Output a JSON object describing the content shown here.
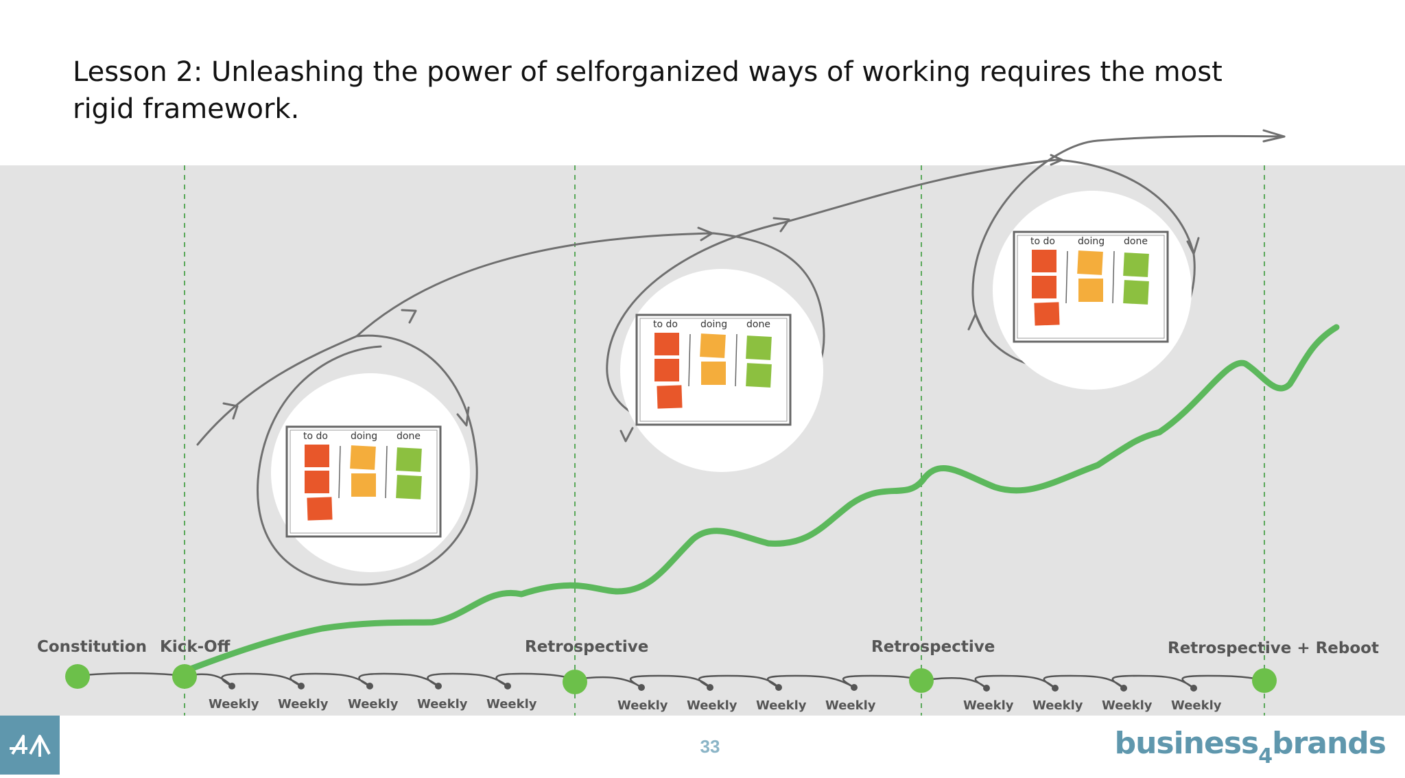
{
  "slide": {
    "title": "Lesson 2: Unleashing the power of selforganized ways of working requires the most rigid framework.",
    "page_number": "33"
  },
  "brand": {
    "name_part1": "business",
    "name_sub": "4",
    "name_part2": "brands"
  },
  "colors": {
    "background": "#e3e3e3",
    "growth_line": "#5cb85c",
    "milestone": "#6cc04a",
    "todo_note": "#e8572a",
    "doing_note": "#f4ad3c",
    "done_note": "#8cc040",
    "brand": "#5f97ad"
  },
  "boards": [
    {
      "columns": [
        "to do",
        "doing",
        "done"
      ]
    },
    {
      "columns": [
        "to do",
        "doing",
        "done"
      ]
    },
    {
      "columns": [
        "to do",
        "doing",
        "done"
      ]
    }
  ],
  "milestones": {
    "constitution": "Constitution",
    "kickoff": "Kick-Off",
    "retro1": "Retrospective",
    "retro2": "Retrospective",
    "retro_reboot": "Retrospective + Reboot"
  },
  "weekly_label": "Weekly",
  "icons": {
    "logo": "four-b-logo-icon"
  }
}
